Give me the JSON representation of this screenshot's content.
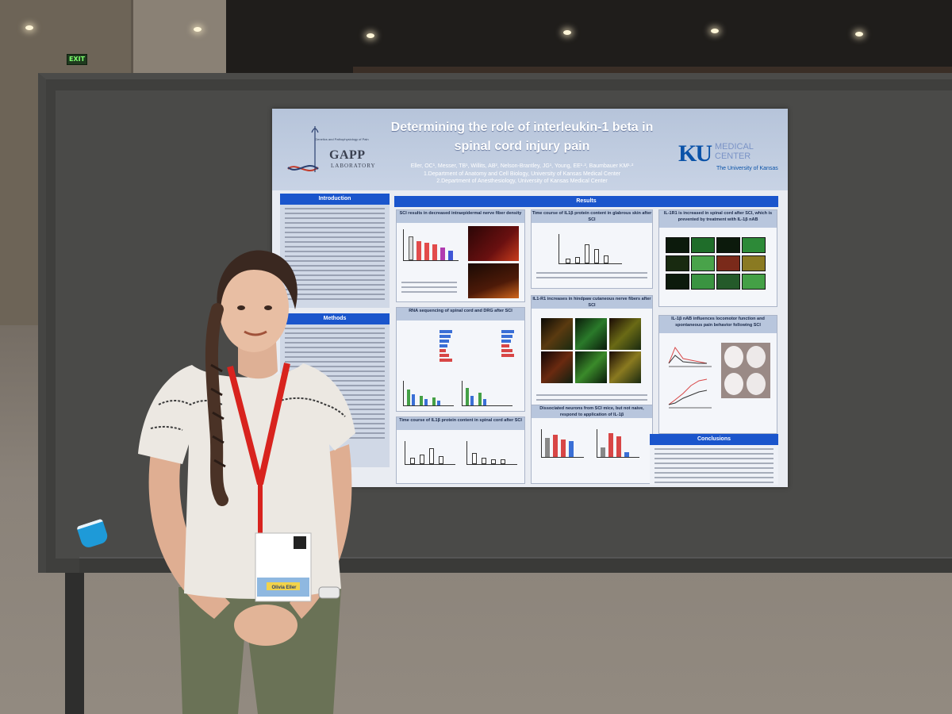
{
  "scene": {
    "exit_sign": "EXIT"
  },
  "poster": {
    "title_line1": "Determining the role of interleukin-1 beta in",
    "title_line2": "spinal cord injury pain",
    "authors": "Eller, OC¹, Messer, TB¹, Willits, AB², Nelson-Brantley, JG¹, Young, EE¹·², Baumbauer KM¹·²",
    "affiliation1": "1.Department of Anatomy and Cell Biology, University of Kansas Medical Center",
    "affiliation2": "2.Department of Anesthesiology, University of Kansas Medical Center",
    "lab_logo": {
      "small_text": "Genetics and Pathophysiology of Pain",
      "word": "GAPP",
      "sub": "LABORATORY"
    },
    "institution_logo": {
      "letters": "KU",
      "line1": "MEDICAL",
      "line2": "CENTER",
      "line3": "The University of Kansas"
    },
    "sections": {
      "introduction": "Introduction",
      "methods": "Methods",
      "results": "Results",
      "conclusions": "Conclusions"
    },
    "panels": {
      "p1": "SCI results in decreased intraepidermal nerve fiber density",
      "p2": "Time course of IL1β protein content in glabrous skin after SCI",
      "p3": "IL-1R1 is increased in spinal cord after SCI, which is prevented by treatment with IL-1β nAB",
      "p4": "RNA sequencing of spinal cord and DRG after SCI",
      "p5": "IL1-R1 increases in hindpaw cutaneous nerve fibers after SCI",
      "p6": "IL-1β nAB influences locomotor function and spontaneous pain behavior following SCI",
      "p7": "Time course of IL1β protein content in spinal cord after SCI",
      "p8": "Dissociated neurons from SCI mice, but not naive, respond to application of IL-1β"
    }
  },
  "nametag": {
    "name": "Olivia Eller"
  }
}
